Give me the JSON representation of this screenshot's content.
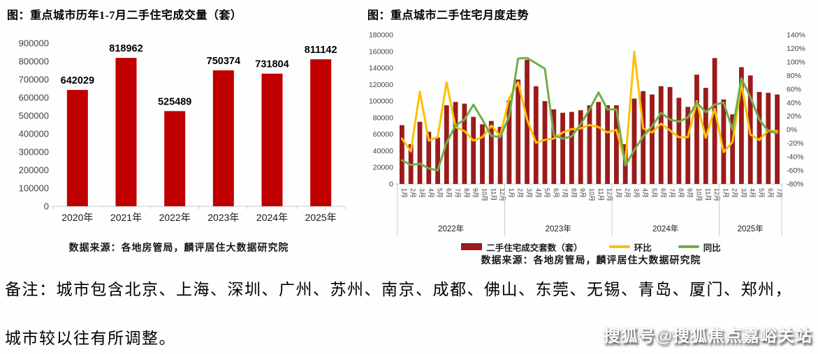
{
  "note": {
    "line1": "备注：城市包含北京、上海、深圳、广州、苏州、南京、成都、佛山、东莞、无锡、青岛、厦门、郑州，",
    "line2": "城市较以往有所调整。"
  },
  "watermark": "搜狐号@搜狐焦点嘉峪关站",
  "chart_data": [
    {
      "type": "bar",
      "title": "图：重点城市历年1-7月二手住宅成交量（套）",
      "categories": [
        "2020年",
        "2021年",
        "2022年",
        "2023年",
        "2024年",
        "2025年"
      ],
      "values": [
        642029,
        818962,
        525489,
        750374,
        731804,
        811142
      ],
      "ylabel": "",
      "xlabel": "",
      "ylim": [
        0,
        900000
      ],
      "ytick_step": 100000,
      "grid": false,
      "data_labels": true,
      "bar_color": "#c00000",
      "axis_color": "#c9c9c9",
      "tick_text_color": "#3f3f3f",
      "source": "数据来源：各地房管局，麟评居住大数据研究院"
    },
    {
      "type": "bar",
      "subtype": "bar+line combo, dual axis",
      "title": "图：重点城市二手住宅月度走势",
      "month_labels": [
        "1月",
        "2月",
        "3月",
        "4月",
        "5月",
        "6月",
        "7月",
        "8月",
        "9月",
        "10月",
        "11月",
        "12月"
      ],
      "groups": [
        {
          "label": "2022年",
          "count": 12
        },
        {
          "label": "2023年",
          "count": 12
        },
        {
          "label": "2024年",
          "count": 12
        },
        {
          "label": "2025年",
          "count": 7
        }
      ],
      "left_ylim": [
        0,
        180000
      ],
      "left_ytick_step": 20000,
      "right_ylim_pct": [
        -80,
        140
      ],
      "right_ytick_step_pct": 20,
      "grid": false,
      "legend_position": "bottom",
      "axis_color": "#c9c9c9",
      "tick_text_color": "#3f3f3f",
      "series": [
        {
          "name": "二手住宅成交套数（套）",
          "type": "bar",
          "axis": "left",
          "color": "#9b1b1b",
          "values": [
            71000,
            48000,
            75000,
            63000,
            56000,
            95000,
            99000,
            97000,
            81000,
            72000,
            76000,
            69000,
            101000,
            126000,
            150000,
            118000,
            100000,
            90000,
            86000,
            87000,
            89000,
            95000,
            99000,
            95000,
            95000,
            48000,
            103000,
            112000,
            108000,
            118000,
            117000,
            104000,
            93000,
            132000,
            116000,
            152000,
            102000,
            84000,
            141000,
            131000,
            111000,
            110000,
            108000
          ]
        },
        {
          "name": "环比",
          "type": "line",
          "axis": "right",
          "unit": "%",
          "color": "#ffc000",
          "values": [
            -13,
            -32,
            56,
            -16,
            -11,
            70,
            4,
            -2,
            -16,
            -11,
            6,
            -9,
            46,
            70,
            15,
            -19,
            -15,
            -13,
            -4,
            1,
            2,
            7,
            4,
            -4,
            0,
            -49,
            115,
            2,
            -4,
            9,
            -1,
            -11,
            -11,
            42,
            -12,
            31,
            -33,
            -18,
            68,
            -7,
            -15,
            -1,
            -2
          ]
        },
        {
          "name": "同比",
          "type": "line",
          "axis": "right",
          "unit": "%",
          "color": "#70ad47",
          "values": [
            -45,
            -52,
            -50,
            -57,
            -60,
            -19,
            6,
            15,
            37,
            15,
            -9,
            -11,
            20,
            105,
            106,
            98,
            90,
            -8,
            -13,
            -10,
            8,
            30,
            55,
            30,
            30,
            -53,
            -30,
            -10,
            5,
            25,
            15,
            12,
            18,
            40,
            26,
            37,
            40,
            0,
            76,
            48,
            15,
            -2,
            -5
          ]
        }
      ],
      "source": "数据来源：各地房管局，麟评居住大数据研究院"
    }
  ]
}
